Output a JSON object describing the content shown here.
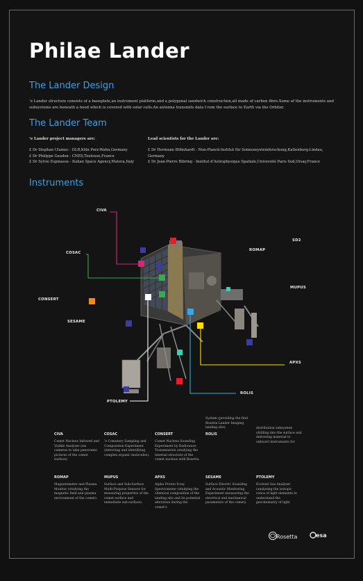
{
  "title": "Philae Lander",
  "design": {
    "heading": "The Lander Design",
    "text": "’e Lander structure consists of a baseplate,an instrument platform,and a polygonal sandwich construction,all made of carbon ﬁbre.Some of the instruments and subsystems are beneath a hood which is covered with solar cells.An antenna transmits data f rom the surface to Earth via the Orbiter."
  },
  "team": {
    "heading": "The Lander  Team",
    "managers_head": "’e Lander project managers are:",
    "managers": [
      "£ Dr Stephan Ulamec - DLR,Köln Porz-Wahn,Germany",
      "£ Dr Philippe Gaudon - CNES,Toulouse,France",
      "£ Dr Sylvie Espinasse - Italian Space Agency,Matera,Italy"
    ],
    "scientists_head": "Lead scientists for the Lander are:",
    "scientists": [
      "£ Dr Hermann Böhnhardt - Max-Planck-Institut für Sonnensystemforschung,Katlenburg-Lindau, Germany",
      "£ Dr Jean-Pierre Bibring - Institut d’Astrophysique Spatiale,Université Paris Sud,Orsay,France"
    ]
  },
  "instruments": {
    "heading": "Instruments",
    "labels": {
      "civa": "CIVA",
      "cosac": "COSAC",
      "consert": "CONSERT",
      "sesame": "SESAME",
      "ptolemy": "PTOLEMY",
      "sd2": "SD2",
      "romap": "ROMAP",
      "mupus": "MUPUS",
      "apxs": "APXS",
      "rolis": "ROLIS"
    }
  },
  "table": {
    "row1": [
      {
        "head": "CIVA",
        "body": "Comet Nucleus Infrared and Visible Analyser (six cameras to take panoramic pictures of the comet surface)."
      },
      {
        "head": "COSAC",
        "body": "’e Cometary Sampling and Composition Experiment (detecting and identifying complex organic molecules)."
      },
      {
        "head": "CONSERT",
        "body": "Comet Nucleus Sounding Experiment by Radiowave Transmission (studying the internal structure of the comet nucleus with Rosetta."
      },
      {
        "head": "ROLIS",
        "pre": "System (providing the ﬁrst Rosetta Lander Imaging landing site).",
        "body": ""
      },
      {
        "head": "",
        "pre": "distribution subsystem (drilling into the surface and delivering material to onboard instruments for",
        "body": ""
      }
    ],
    "row2": [
      {
        "head": "ROMAP",
        "body": "Magnetometer and Plasma Monitor (studying the magnetic ﬁeld and plasma environment of the comet)."
      },
      {
        "head": "MUPUS",
        "body": "Surface and Sub-Surface Multi-Purpose Sensors for measuring properties of the comet surface and immediate sub-surface)."
      },
      {
        "head": "APXS",
        "body": "Alpha Proton X-ray Spectrometer (studying the chemical composition of the landing site and its potential alteration during the comet's"
      },
      {
        "head": "SESAME",
        "body": "Surface Electric Sounding and Acoustic Monitoring Experiment (measuring the electrical and mechanical parameters of the comet)."
      },
      {
        "head": "PTOLEMY",
        "body": "Evolved Gas Analyser (analyzing the isotopic ratios of light elements to understand the geochemistry of light"
      }
    ]
  },
  "logos": {
    "rosetta": "Rosetta",
    "esa": "esa"
  },
  "colors": {
    "accent_blue": "#3fa0e0",
    "civa": "#e0207a",
    "cosac": "#2fb04a",
    "consert": "#f08a1c",
    "sesame": "#3a3aa8",
    "ptolemy": "#ffffff",
    "sd2": "#e0202a",
    "romap": "#3a3aa8",
    "mupus": "#3ad0b0",
    "apxs": "#ffe000",
    "rolis": "#38a8e8"
  }
}
